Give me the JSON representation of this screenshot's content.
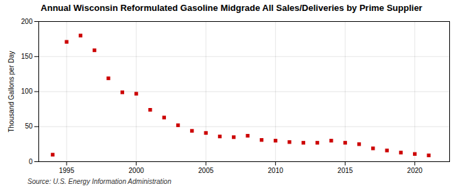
{
  "chart_data": {
    "type": "scatter",
    "title": "Annual Wisconsin Reformulated Gasoline Midgrade All Sales/Deliveries by Prime Supplier",
    "ylabel": "Thousand Gallons per Day",
    "source": "Source: U.S. Energy Information Administration",
    "x": [
      1994,
      1995,
      1996,
      1997,
      1998,
      1999,
      2000,
      2001,
      2002,
      2003,
      2004,
      2005,
      2006,
      2007,
      2008,
      2009,
      2010,
      2011,
      2012,
      2013,
      2014,
      2015,
      2016,
      2017,
      2018,
      2019,
      2020,
      2021
    ],
    "values": [
      10,
      171,
      180,
      159,
      119,
      99,
      97,
      74,
      63,
      52,
      44,
      41,
      36,
      35,
      37,
      31,
      30,
      28,
      27,
      27,
      30,
      27,
      25,
      19,
      16,
      13,
      11,
      9
    ],
    "color": "#cc0000",
    "marker": "square",
    "xlim": [
      1993.0,
      2022.5
    ],
    "ylim": [
      0,
      200
    ],
    "xticks": [
      1995,
      2000,
      2005,
      2010,
      2015,
      2020
    ],
    "yticks": [
      0,
      50,
      100,
      150,
      200
    ],
    "grid": true
  }
}
